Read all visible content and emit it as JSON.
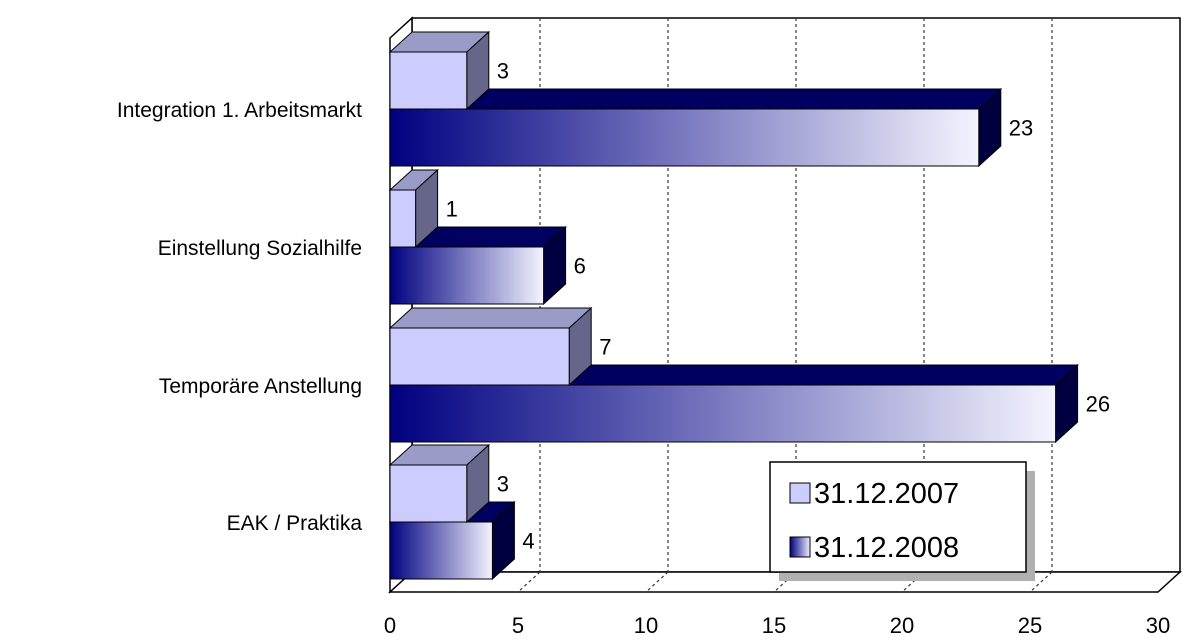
{
  "chart_data": {
    "type": "bar",
    "orientation": "horizontal",
    "categories": [
      "Integration 1. Arbeitsmarkt",
      "Einstellung Sozialhilfe",
      "Temporäre Anstellung",
      "EAK / Praktika"
    ],
    "series": [
      {
        "name": "31.12.2007",
        "values": [
          3,
          1,
          7,
          3
        ],
        "color": "#ccccff"
      },
      {
        "name": "31.12.2008",
        "values": [
          23,
          6,
          26,
          4
        ],
        "color": "#000080"
      }
    ],
    "xlim": [
      0,
      30
    ],
    "xticks": [
      "0",
      "5",
      "10",
      "15",
      "20",
      "25",
      "30"
    ],
    "grid": true,
    "legend_position": "bottom-right"
  }
}
